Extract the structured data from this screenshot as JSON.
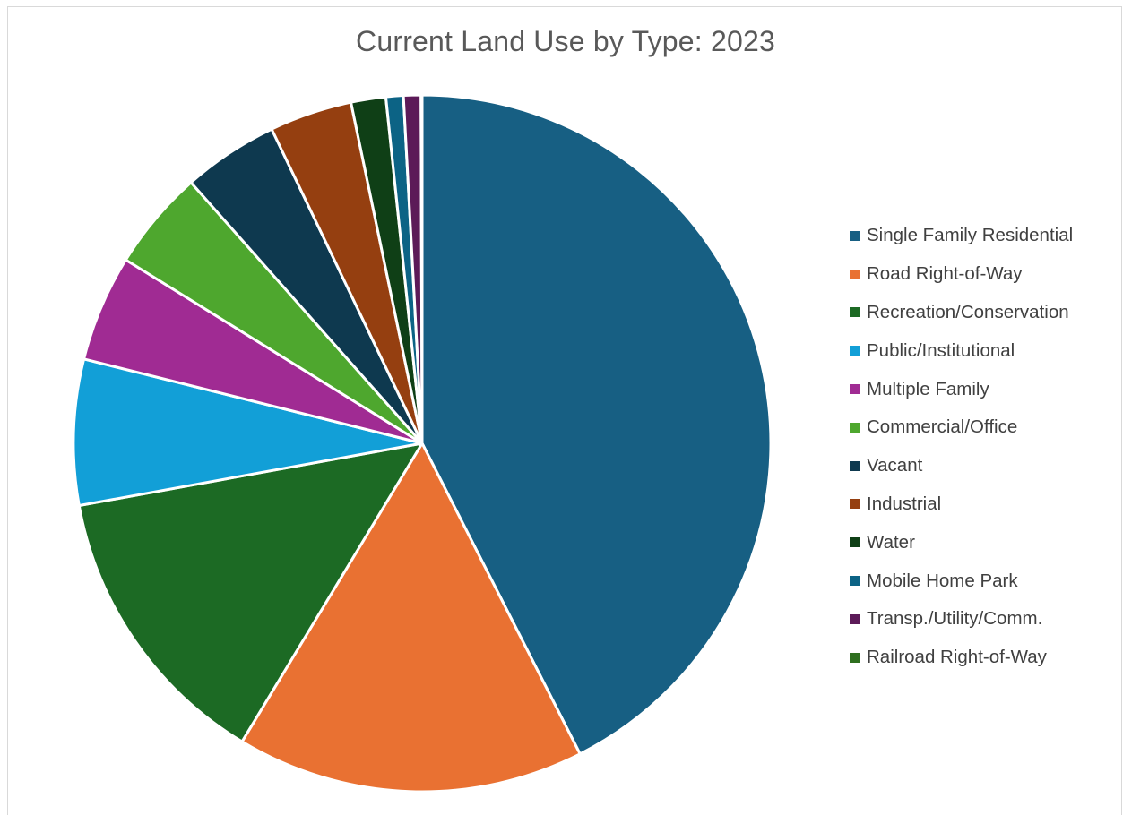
{
  "chart_data": {
    "type": "pie",
    "title": "Current Land Use by Type: 2023",
    "legend_position": "right",
    "slices": [
      {
        "name": "Single Family Residential",
        "value": 42.2,
        "color": "#175f83"
      },
      {
        "name": "Road Right-of-Way",
        "value": 16.0,
        "color": "#e97132"
      },
      {
        "name": "Recreation/Conservation",
        "value": 13.4,
        "color": "#1c6a24"
      },
      {
        "name": "Public/Institutional",
        "value": 6.7,
        "color": "#129fd7"
      },
      {
        "name": "Multiple Family",
        "value": 4.9,
        "color": "#a02b93"
      },
      {
        "name": "Commercial/Office",
        "value": 4.6,
        "color": "#4ea72e"
      },
      {
        "name": "Vacant",
        "value": 4.4,
        "color": "#0e394f"
      },
      {
        "name": "Industrial",
        "value": 3.8,
        "color": "#953f10"
      },
      {
        "name": "Water",
        "value": 1.6,
        "color": "#0f3f16"
      },
      {
        "name": "Mobile Home Park",
        "value": 0.8,
        "color": "#0c6385"
      },
      {
        "name": "Transp./Utility/Comm.",
        "value": 0.8,
        "color": "#5c1a58"
      },
      {
        "name": "Railroad Right-of-Way",
        "value": 0.05,
        "color": "#2f6f1f"
      }
    ]
  }
}
